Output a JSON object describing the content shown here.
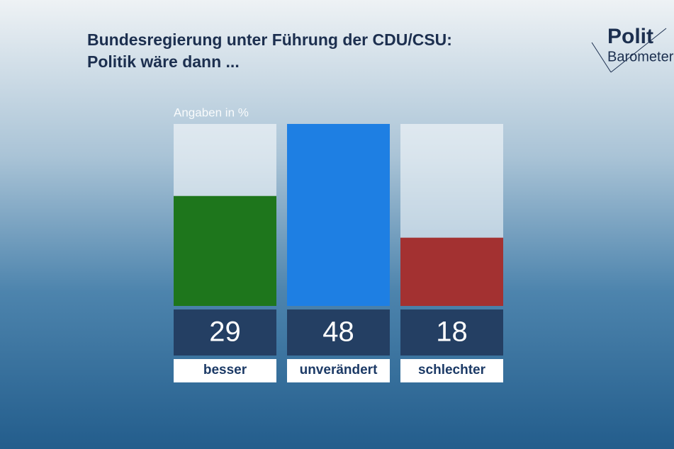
{
  "chart_data": {
    "type": "bar",
    "title": [
      "Bundesregierung unter Führung der CDU/CSU:",
      "Politik wäre dann ..."
    ],
    "note": "Angaben in %",
    "logo": [
      "Polit",
      "Barometer"
    ],
    "categories": [
      "besser",
      "unverändert",
      "schlechter"
    ],
    "values": [
      29,
      48,
      18
    ],
    "colors": [
      "#1e761c",
      "#1e7fe3",
      "#a33131"
    ]
  }
}
